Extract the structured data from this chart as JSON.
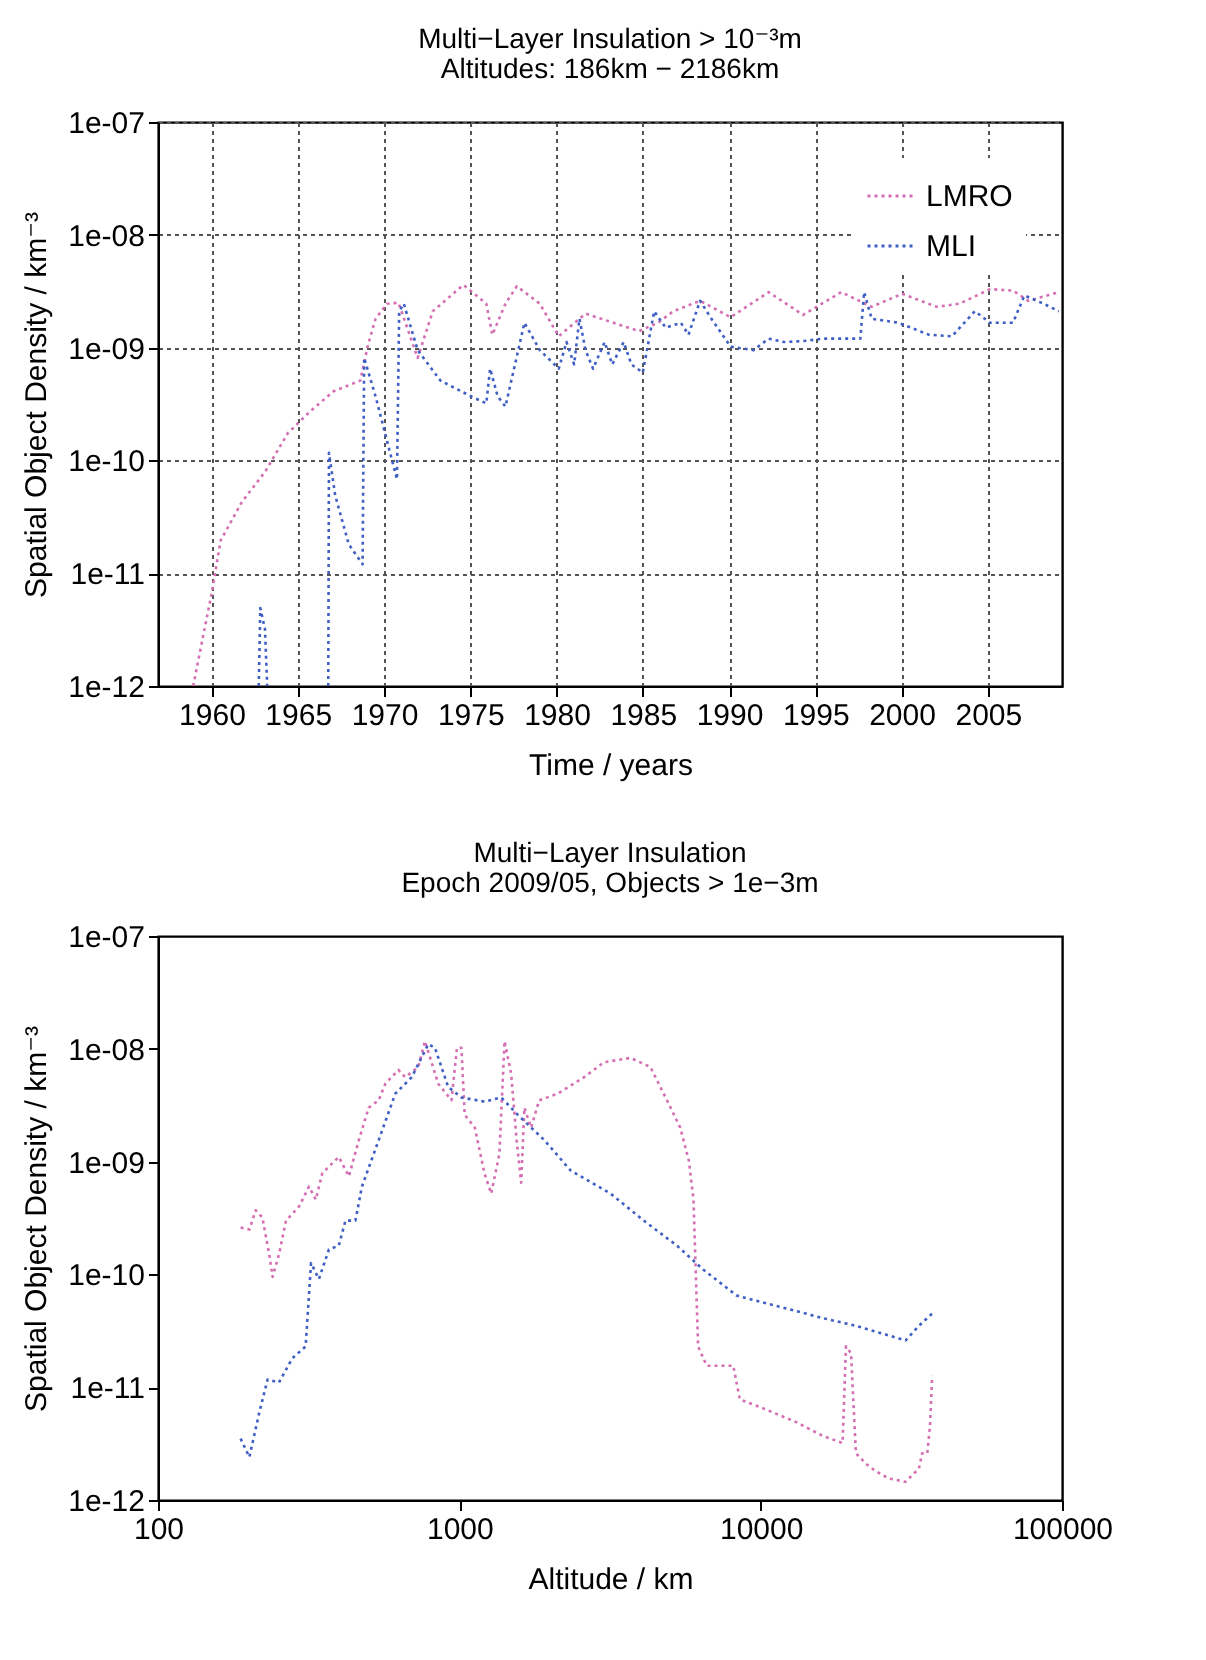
{
  "chart_data": [
    {
      "type": "line",
      "title": "Multi−Layer Insulation > 10⁻³m",
      "subtitle": "Altitudes: 186km − 2186km",
      "xlabel": "Time / years",
      "ylabel": "Spatial Object Density / km⁻³",
      "log": "y",
      "grid": true,
      "legend": "top right",
      "line_style": "dotted",
      "xlim": [
        1956.9,
        2009.3
      ],
      "xticks": [
        1960,
        1965,
        1970,
        1975,
        1980,
        1985,
        1990,
        1995,
        2000,
        2005
      ],
      "ylim": [
        1e-12,
        1e-07
      ],
      "yticks": [
        {
          "value": 1e-12,
          "label": "1e-12"
        },
        {
          "value": 1e-11,
          "label": "1e-11"
        },
        {
          "value": 1e-10,
          "label": "1e-10"
        },
        {
          "value": 1e-09,
          "label": "1e-09"
        },
        {
          "value": 1e-08,
          "label": "1e-08"
        },
        {
          "value": 1e-07,
          "label": "1e-07"
        }
      ],
      "series": [
        {
          "name": "LMRO",
          "color": "#d46fb4",
          "x": [
            1958.94,
            1959.56,
            1960.0,
            1960.53,
            1961.77,
            1963.1,
            1964.42,
            1965.75,
            1967.08,
            1968.63,
            1969.07,
            1969.51,
            1970.18,
            1970.84,
            1971.95,
            1972.83,
            1974.6,
            1975.93,
            1976.28,
            1977.04,
            1977.7,
            1979.03,
            1980.13,
            1981.68,
            1984.78,
            1985.88,
            1986.77,
            1988.32,
            1990.09,
            1992.3,
            1994.29,
            1996.5,
            1998.27,
            2000.04,
            2002.04,
            2003.36,
            2005.13,
            2006.46,
            2007.35,
            2009.12
          ],
          "values": [
            1e-12,
            3e-12,
            6.5e-12,
            1.95e-11,
            4.3e-11,
            7.9e-11,
            1.74e-10,
            2.75e-10,
            4.1e-10,
            5.1e-10,
            1.05e-09,
            1.8e-09,
            2.45e-09,
            2.5e-09,
            8.1e-10,
            2.1e-09,
            3.6e-09,
            2.45e-09,
            1.3e-09,
            2.45e-09,
            3.5e-09,
            2.45e-09,
            1.26e-09,
            2e-09,
            1.4e-09,
            1.66e-09,
            2.1e-09,
            2.6e-09,
            1.86e-09,
            3.1e-09,
            1.95e-09,
            3.1e-09,
            2.3e-09,
            3e-09,
            2.3e-09,
            2.45e-09,
            3.3e-09,
            3.2e-09,
            2.6e-09,
            3.1e-09
          ]
        },
        {
          "name": "MLI",
          "color": "#3f5fc4",
          "x": [
            1962.74,
            1962.83,
            1963.1,
            1963.23,
            1965.0,
            1966.77,
            1966.81,
            1967.17,
            1967.96,
            1968.76,
            1968.85,
            1969.51,
            1970.18,
            1970.75,
            1970.88,
            1971.15,
            1971.95,
            1973.27,
            1975.04,
            1975.93,
            1976.15,
            1976.59,
            1977.04,
            1978.14,
            1979.03,
            1980.13,
            1980.58,
            1981.02,
            1981.33,
            1981.68,
            1982.12,
            1982.79,
            1983.23,
            1983.89,
            1984.34,
            1985.0,
            1985.66,
            1986.33,
            1987.21,
            1987.65,
            1988.32,
            1988.98,
            1990.09,
            1991.42,
            1992.3,
            1993.19,
            1994.51,
            1995.4,
            1997.61,
            1997.83,
            1998.27,
            1999.82,
            2001.59,
            2002.92,
            2004.25,
            2005.13,
            2006.46,
            2007.12,
            2008.23,
            2009.12
          ],
          "values": [
            1e-12,
            4.9e-12,
            3.2e-12,
            1e-12,
            null,
            1e-12,
            1.17e-10,
            4.9e-11,
            1.8e-11,
            1.2e-11,
            8.1e-10,
            3.7e-10,
            1.48e-10,
            6.8e-11,
            2.1e-09,
            2.45e-09,
            9.5e-10,
            5.1e-10,
            3.7e-10,
            3.2e-10,
            6.5e-10,
            3.7e-10,
            3e-10,
            1.66e-09,
            9.5e-10,
            6.5e-10,
            1.12e-09,
            7.1e-10,
            1.8e-09,
            9.5e-10,
            6.5e-10,
            1.12e-09,
            7.1e-10,
            1.12e-09,
            7.1e-10,
            6e-10,
            2.1e-09,
            1.5e-09,
            1.66e-09,
            1.3e-09,
            2.6e-09,
            1.8e-09,
            1.02e-09,
            9.5e-10,
            1.2e-09,
            1.12e-09,
            1.15e-09,
            1.2e-09,
            1.2e-09,
            3.1e-09,
            1.8e-09,
            1.66e-09,
            1.3e-09,
            1.26e-09,
            2.1e-09,
            1.66e-09,
            1.66e-09,
            2.9e-09,
            2.45e-09,
            2.1e-09
          ]
        }
      ]
    },
    {
      "type": "line",
      "title": "Multi−Layer Insulation",
      "subtitle": "Epoch 2009/05, Objects > 1e−3m",
      "xlabel": "Altitude / km",
      "ylabel": "Spatial Object Density / km⁻³",
      "log": "xy",
      "legend": "top right",
      "line_style": "dotted",
      "xlim": [
        100,
        100000
      ],
      "xticks": [
        100,
        1000,
        10000,
        100000
      ],
      "ylim": [
        1e-12,
        1e-07
      ],
      "yticks": [
        {
          "value": 1e-12,
          "label": "1e-12"
        },
        {
          "value": 1e-11,
          "label": "1e-11"
        },
        {
          "value": 1e-10,
          "label": "1e-10"
        },
        {
          "value": 1e-09,
          "label": "1e-09"
        },
        {
          "value": 1e-08,
          "label": "1e-08"
        },
        {
          "value": 1e-07,
          "label": "1e-07"
        }
      ],
      "series": [
        {
          "name": "LMRO",
          "color": "#d46fb4",
          "x": [
            188,
            201,
            211,
            222,
            234,
            240,
            252,
            266,
            294,
            317,
            334,
            351,
            398,
            430,
            464,
            500,
            540,
            568,
            628,
            661,
            731,
            769,
            851,
            942,
            982,
            1016,
            1042,
            1125,
            1213,
            1276,
            1358,
            1413,
            1486,
            1549,
            1604,
            1644,
            1730,
            1841,
            2120,
            2594,
            3020,
            3700,
            4305,
            4887,
            5408,
            5778,
            5985,
            6200,
            6620,
            8110,
            8530,
            10180,
            13120,
            16070,
            18700,
            19190,
            19950,
            20700,
            22330,
            24100,
            26670,
            30270,
            33500,
            34360,
            35730,
            36480,
            37070
          ],
          "values": [
            2.6e-10,
            2.5e-10,
            3.7e-10,
            3.2e-10,
            1.5e-10,
            9.5e-11,
            1.5e-10,
            3e-10,
            4e-10,
            6e-10,
            4.6e-10,
            7.9e-10,
            1.1e-09,
            7.4e-10,
            1.55e-09,
            3e-09,
            3.5e-09,
            4.9e-09,
            6.5e-09,
            5.6e-09,
            6.9e-09,
            1.17e-08,
            4.9e-09,
            3.5e-09,
            1.02e-08,
            1.02e-08,
            2.6e-09,
            2e-09,
            7.8e-10,
            5.2e-10,
            1.17e-09,
            1.17e-08,
            6e-09,
            1.55e-09,
            6.5e-10,
            3e-09,
            2e-09,
            3.5e-09,
            4e-09,
            5.6e-09,
            7.6e-09,
            8.3e-09,
            6.9e-09,
            3.5e-09,
            2e-09,
            1.02e-09,
            4.6e-10,
            2.3e-11,
            1.55e-11,
            1.55e-11,
            7.8e-12,
            6.5e-12,
            4.9e-12,
            3.7e-12,
            3.2e-12,
            2.3e-11,
            2e-11,
            2.6e-12,
            2.1e-12,
            1.8e-12,
            1.55e-12,
            1.45e-12,
            1.9e-12,
            2.6e-12,
            2.6e-12,
            4.6e-12,
            1.26e-11
          ]
        },
        {
          "name": "MLI",
          "color": "#3f5fc4",
          "x": [
            188,
            201,
            217,
            231,
            252,
            279,
            309,
            322,
            342,
            369,
            398,
            419,
            452,
            475,
            540,
            613,
            695,
            789,
            830,
            918,
            1016,
            1213,
            1377,
            1563,
            1914,
            2344,
            3177,
            4093,
            5272,
            6457,
            8318,
            12470,
            16070,
            20700,
            30270,
            33500,
            37070
          ],
          "values": [
            3.5e-12,
            2.4e-12,
            6e-12,
            1.17e-11,
            1.1e-11,
            1.8e-11,
            2.3e-11,
            1.26e-10,
            9.1e-11,
            1.66e-10,
            1.8e-10,
            3e-10,
            3e-10,
            6e-10,
            1.55e-09,
            4e-09,
            5.6e-09,
            1.1e-08,
            1.02e-08,
            4.6e-09,
            3.7e-09,
            3.4e-09,
            3.7e-09,
            2.6e-09,
            1.55e-09,
            8.3e-10,
            5.2e-10,
            3e-10,
            1.8e-10,
            1.1e-10,
            6.5e-11,
            4.9e-11,
            4.1e-11,
            3.5e-11,
            2.6e-11,
            3.5e-11,
            4.5e-11
          ]
        }
      ]
    }
  ]
}
